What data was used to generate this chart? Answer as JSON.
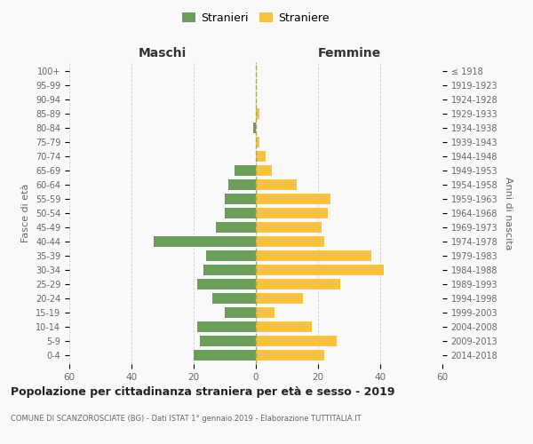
{
  "age_groups": [
    "100+",
    "95-99",
    "90-94",
    "85-89",
    "80-84",
    "75-79",
    "70-74",
    "65-69",
    "60-64",
    "55-59",
    "50-54",
    "45-49",
    "40-44",
    "35-39",
    "30-34",
    "25-29",
    "20-24",
    "15-19",
    "10-14",
    "5-9",
    "0-4"
  ],
  "birth_years": [
    "≤ 1918",
    "1919-1923",
    "1924-1928",
    "1929-1933",
    "1934-1938",
    "1939-1943",
    "1944-1948",
    "1949-1953",
    "1954-1958",
    "1959-1963",
    "1964-1968",
    "1969-1973",
    "1974-1978",
    "1979-1983",
    "1984-1988",
    "1989-1993",
    "1994-1998",
    "1999-2003",
    "2004-2008",
    "2009-2013",
    "2014-2018"
  ],
  "males": [
    0,
    0,
    0,
    0,
    1,
    0,
    0,
    7,
    9,
    10,
    10,
    13,
    33,
    16,
    17,
    19,
    14,
    10,
    19,
    18,
    20
  ],
  "females": [
    0,
    0,
    0,
    1,
    0,
    1,
    3,
    5,
    13,
    24,
    23,
    21,
    22,
    37,
    41,
    27,
    15,
    6,
    18,
    26,
    22
  ],
  "male_color": "#6a9e5a",
  "female_color": "#f5c242",
  "background_color": "#f9f9f9",
  "grid_color": "#cccccc",
  "bar_height": 0.75,
  "xlim": 60,
  "title": "Popolazione per cittadinanza straniera per età e sesso - 2019",
  "subtitle": "COMUNE DI SCANZOROSCIATE (BG) - Dati ISTAT 1° gennaio 2019 - Elaborazione TUTTITALIA.IT",
  "xlabel_left": "Maschi",
  "xlabel_right": "Femmine",
  "ylabel_left": "Fasce di età",
  "ylabel_right": "Anni di nascita",
  "legend_male": "Stranieri",
  "legend_female": "Straniere",
  "dashed_line_color": "#aaa855"
}
